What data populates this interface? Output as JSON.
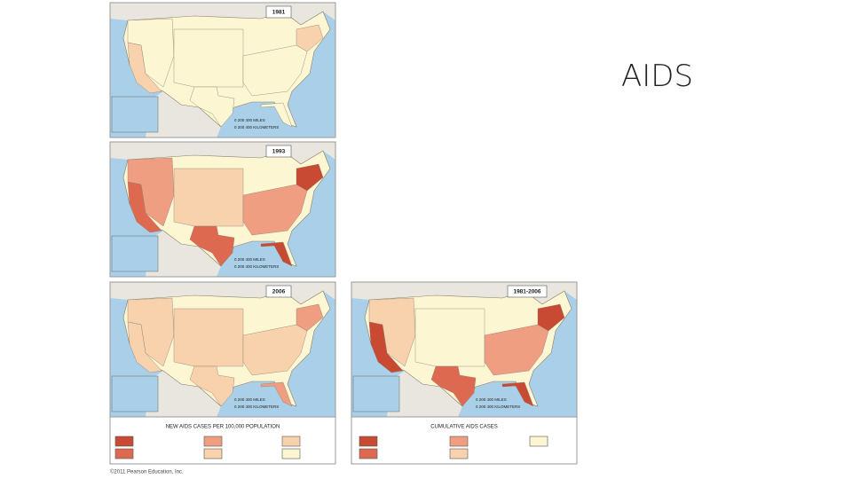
{
  "slide": {
    "title": "AIDS",
    "maps": [
      {
        "label": "1981"
      },
      {
        "label": "1993"
      },
      {
        "label": "2006"
      },
      {
        "label": "1981-2006"
      }
    ],
    "legends": [
      {
        "title": "NEW AIDS CASES PER 100,000 POPULATION"
      },
      {
        "title": "CUMULATIVE AIDS CASES"
      }
    ],
    "scale": {
      "miles": "0   200   400 MILES",
      "kilometers": "0   200 400 KILOMETERS"
    },
    "copyright": "©2011 Pearson Education, Inc."
  }
}
